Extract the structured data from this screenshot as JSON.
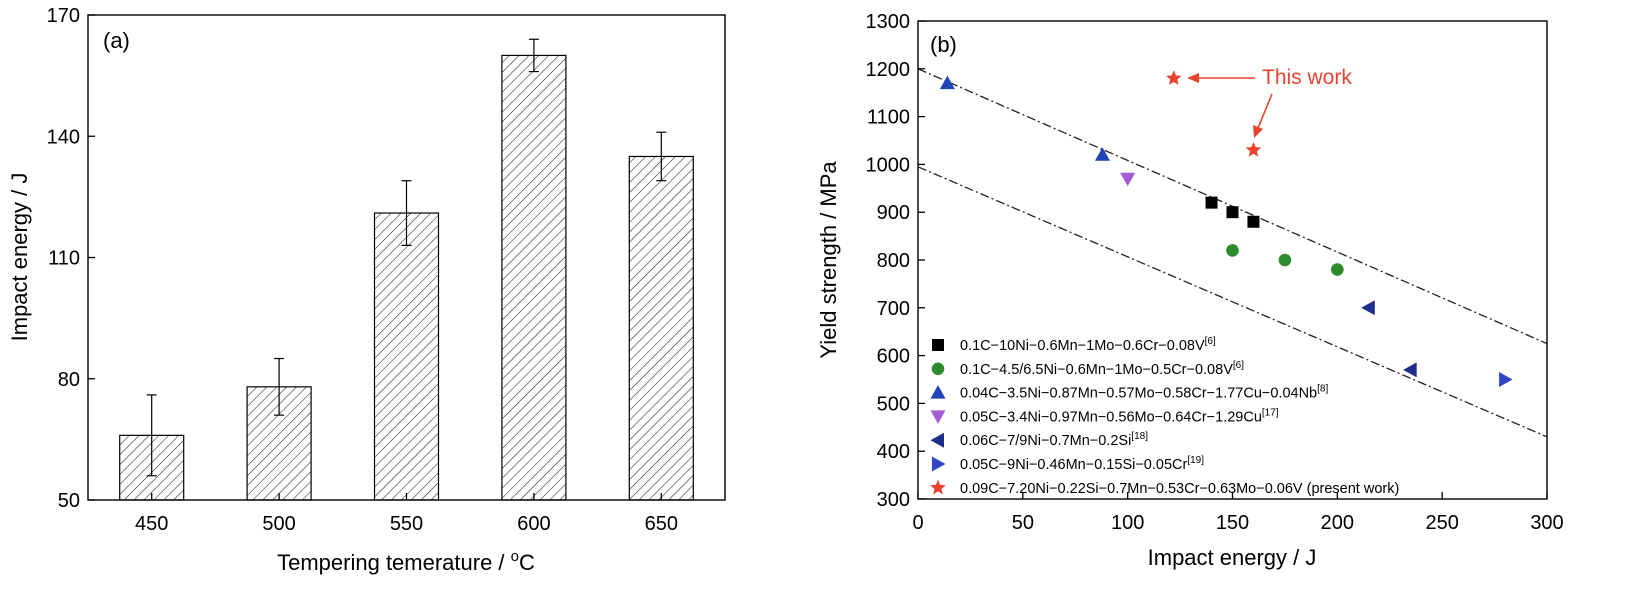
{
  "chart_data": [
    {
      "type": "bar",
      "panel_label": "(a)",
      "xlabel": "Tempering temerature / ",
      "xlabel_sup": "o",
      "xlabel_unit": "C",
      "ylabel": "Impact energy / J",
      "ylim": [
        50,
        170
      ],
      "yticks": [
        50,
        80,
        110,
        140,
        170
      ],
      "categories": [
        "450",
        "500",
        "550",
        "600",
        "650"
      ],
      "values": [
        66,
        78,
        121,
        160,
        135
      ],
      "errors": [
        10,
        7,
        8,
        4,
        6
      ],
      "bar_fill": "hatched"
    },
    {
      "type": "scatter",
      "panel_label": "(b)",
      "xlabel": "Impact energy / J",
      "ylabel": "Yield strength / MPa",
      "xlim": [
        0,
        300
      ],
      "ylim": [
        300,
        1300
      ],
      "xticks": [
        0,
        50,
        100,
        150,
        200,
        250,
        300
      ],
      "yticks": [
        300,
        400,
        500,
        600,
        700,
        800,
        900,
        1000,
        1100,
        1200,
        1300
      ],
      "legend_position": "bottom-left",
      "series": [
        {
          "name": "0.1C−10Ni−0.6Mn−1Mo−0.6Cr−0.08V",
          "ref": "[6]",
          "marker": "square",
          "color": "#000000",
          "points": [
            [
              140,
              920
            ],
            [
              150,
              900
            ],
            [
              160,
              880
            ]
          ]
        },
        {
          "name": "0.1C−4.5/6.5Ni−0.6Mn−1Mo−0.5Cr−0.08V",
          "ref": "[6]",
          "marker": "circle",
          "color": "#2e8b2e",
          "points": [
            [
              150,
              820
            ],
            [
              175,
              800
            ],
            [
              200,
              780
            ]
          ]
        },
        {
          "name": "0.04C−3.5Ni−0.87Mn−0.57Mo−0.58Cr−1.77Cu−0.04Nb",
          "ref": "[8]",
          "marker": "triangle-up",
          "color": "#2144b8",
          "points": [
            [
              14,
              1170
            ],
            [
              88,
              1020
            ]
          ]
        },
        {
          "name": "0.05C−3.4Ni−0.97Mn−0.56Mo−0.64Cr−1.29Cu",
          "ref": "[17]",
          "marker": "triangle-down",
          "color": "#a35ed6",
          "points": [
            [
              100,
              970
            ]
          ]
        },
        {
          "name": "0.06C−7/9Ni−0.7Mn−0.2Si",
          "ref": "[18]",
          "marker": "triangle-left",
          "color": "#1d2f8a",
          "points": [
            [
              215,
              700
            ],
            [
              235,
              570
            ]
          ]
        },
        {
          "name": "0.05C−9Ni−0.46Mn−0.15Si−0.05Cr",
          "ref": "[19]",
          "marker": "triangle-right",
          "color": "#3347c4",
          "points": [
            [
              280,
              550
            ]
          ]
        },
        {
          "name": "0.09C−7.20Ni−0.22Si−0.7Mn−0.53Cr−0.63Mo−0.06V (present work)",
          "ref": "",
          "marker": "star",
          "color": "#e8432e",
          "points": [
            [
              122,
              1180
            ],
            [
              160,
              1030
            ]
          ]
        }
      ],
      "trend_lines": [
        {
          "from": [
            0,
            1200
          ],
          "to": [
            300,
            625
          ]
        },
        {
          "from": [
            0,
            995
          ],
          "to": [
            300,
            430
          ]
        }
      ],
      "annotation": {
        "text": "This work",
        "color": "#e8432e"
      }
    }
  ]
}
